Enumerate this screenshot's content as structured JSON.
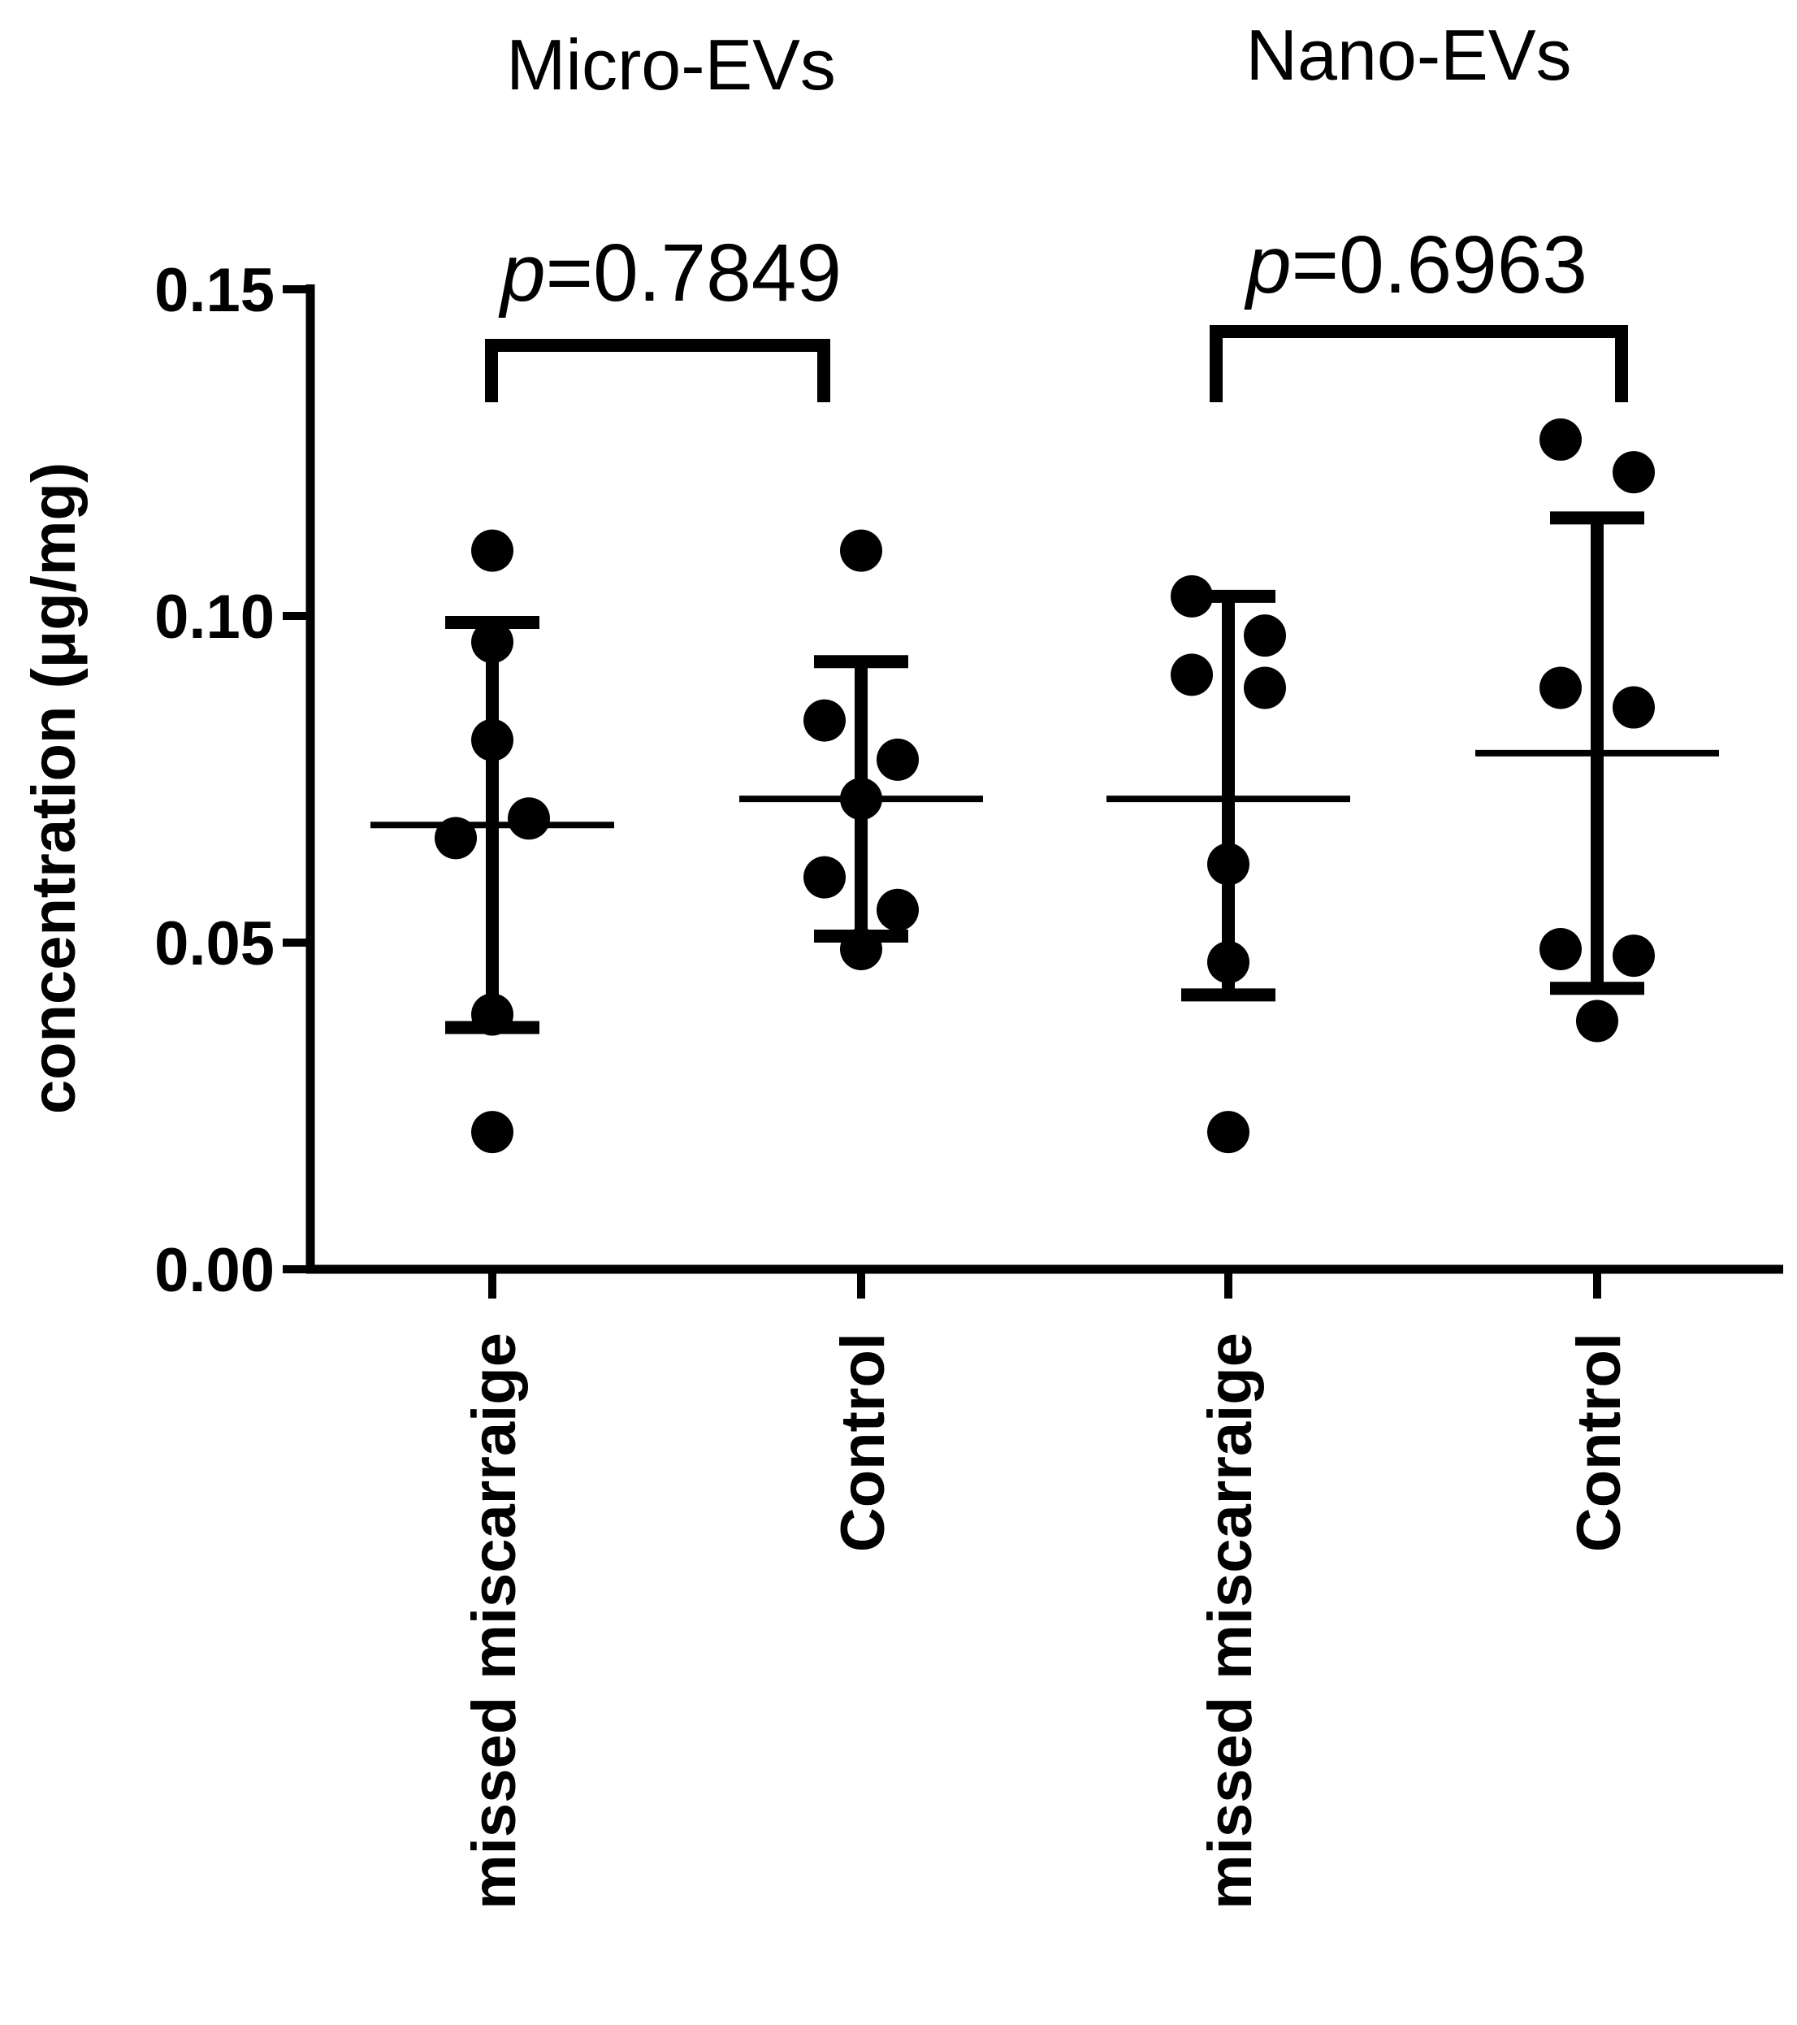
{
  "chart_data": {
    "type": "scatter",
    "ylabel": "concentration (μg/mg)",
    "ylim": [
      0,
      0.15
    ],
    "yticks": [
      "0.00",
      "0.05",
      "0.10",
      "0.15"
    ],
    "grid": false,
    "group_titles": [
      "Micro-EVs",
      "Nano-EVs"
    ],
    "categories": [
      "missed miscarraige",
      "Control",
      "missed miscarraige",
      "Control"
    ],
    "series": [
      {
        "group": "Micro-EVs",
        "category": "missed miscarraige",
        "points": [
          0.11,
          0.096,
          0.081,
          0.069,
          0.066,
          0.039,
          0.021
        ],
        "mean": 0.068,
        "sd_low": 0.037,
        "sd_high": 0.099
      },
      {
        "group": "Micro-EVs",
        "category": "Control",
        "points": [
          0.11,
          0.084,
          0.078,
          0.072,
          0.06,
          0.055,
          0.049
        ],
        "mean": 0.072,
        "sd_low": 0.051,
        "sd_high": 0.093
      },
      {
        "group": "Nano-EVs",
        "category": "missed miscarraige",
        "points": [
          0.103,
          0.097,
          0.091,
          0.089,
          0.062,
          0.047,
          0.021
        ],
        "mean": 0.072,
        "sd_low": 0.042,
        "sd_high": 0.103
      },
      {
        "group": "Nano-EVs",
        "category": "Control",
        "points": [
          0.127,
          0.122,
          0.089,
          0.086,
          0.049,
          0.048,
          0.038
        ],
        "mean": 0.079,
        "sd_low": 0.043,
        "sd_high": 0.115
      }
    ],
    "comparisons": [
      {
        "group": "Micro-EVs",
        "p_prefix": "p",
        "p_value": "=0.7849"
      },
      {
        "group": "Nano-EVs",
        "p_prefix": "p",
        "p_value": "=0.6963"
      }
    ]
  }
}
